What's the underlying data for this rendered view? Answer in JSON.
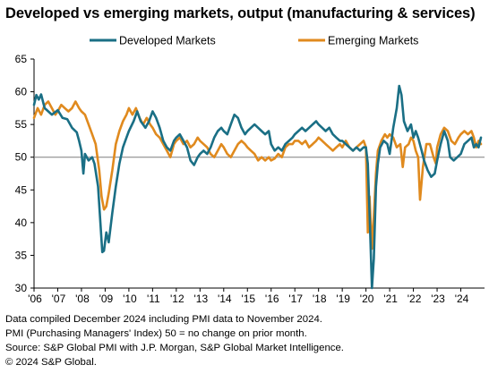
{
  "title": "Developed vs emerging markets, output (manufacturing & services)",
  "notes": [
    "Data compiled December 2024 including PMI data to November 2024.",
    "PMI (Purchasing Managers' Index) 50 = no change on prior month.",
    "Source: S&P Global PMI with J.P. Morgan, S&P Global Market Intelligence.",
    "© 2024 S&P Global."
  ],
  "colors": {
    "developed": "#1a6f85",
    "emerging": "#e08a1e",
    "reference_line": "#7f7f7f"
  },
  "chart_data": {
    "type": "line",
    "title": "Developed vs emerging markets, output (manufacturing & services)",
    "xlabel": "",
    "ylabel": "",
    "ylim": [
      30,
      65
    ],
    "xlim": [
      2006.0,
      2025.0
    ],
    "y_ticks": [
      30,
      35,
      40,
      45,
      50,
      55,
      60,
      65
    ],
    "x_ticks": [
      {
        "label": "'06",
        "x": 2006.0
      },
      {
        "label": "'07",
        "x": 2007.0
      },
      {
        "label": "'08",
        "x": 2008.0
      },
      {
        "label": "'09",
        "x": 2009.0
      },
      {
        "label": "'10",
        "x": 2010.0
      },
      {
        "label": "'11",
        "x": 2011.0
      },
      {
        "label": "'12",
        "x": 2012.0
      },
      {
        "label": "'13",
        "x": 2013.0
      },
      {
        "label": "'14",
        "x": 2014.0
      },
      {
        "label": "'15",
        "x": 2015.0
      },
      {
        "label": "'16",
        "x": 2016.0
      },
      {
        "label": "'17",
        "x": 2017.0
      },
      {
        "label": "'18",
        "x": 2018.0
      },
      {
        "label": "'19",
        "x": 2019.0
      },
      {
        "label": "'20",
        "x": 2020.0
      },
      {
        "label": "'21",
        "x": 2021.0
      },
      {
        "label": "'22",
        "x": 2022.0
      },
      {
        "label": "'23",
        "x": 2023.0
      },
      {
        "label": "'24",
        "x": 2024.0
      }
    ],
    "reference_line": 50,
    "grid": false,
    "legend": "top",
    "series": [
      {
        "name": "Developed Markets",
        "color": "#1a6f85",
        "points": [
          [
            2006.0,
            58.0
          ],
          [
            2006.1,
            59.5
          ],
          [
            2006.2,
            58.8
          ],
          [
            2006.3,
            59.6
          ],
          [
            2006.45,
            57.5
          ],
          [
            2006.6,
            57.0
          ],
          [
            2006.75,
            56.5
          ],
          [
            2007.0,
            57.2
          ],
          [
            2007.2,
            56.0
          ],
          [
            2007.4,
            55.8
          ],
          [
            2007.6,
            54.5
          ],
          [
            2007.8,
            53.8
          ],
          [
            2007.9,
            52.5
          ],
          [
            2008.0,
            51.0
          ],
          [
            2008.08,
            47.5
          ],
          [
            2008.15,
            50.5
          ],
          [
            2008.3,
            49.5
          ],
          [
            2008.45,
            50.0
          ],
          [
            2008.55,
            49.0
          ],
          [
            2008.7,
            45.5
          ],
          [
            2008.8,
            40.0
          ],
          [
            2008.88,
            35.5
          ],
          [
            2008.95,
            35.7
          ],
          [
            2009.05,
            38.5
          ],
          [
            2009.15,
            37.0
          ],
          [
            2009.3,
            41.5
          ],
          [
            2009.45,
            45.5
          ],
          [
            2009.6,
            49.0
          ],
          [
            2009.75,
            51.5
          ],
          [
            2009.9,
            53.0
          ],
          [
            2010.0,
            54.0
          ],
          [
            2010.2,
            55.5
          ],
          [
            2010.35,
            57.0
          ],
          [
            2010.5,
            55.5
          ],
          [
            2010.7,
            54.5
          ],
          [
            2010.85,
            55.5
          ],
          [
            2011.0,
            57.0
          ],
          [
            2011.15,
            56.0
          ],
          [
            2011.3,
            54.5
          ],
          [
            2011.45,
            52.5
          ],
          [
            2011.6,
            51.5
          ],
          [
            2011.75,
            51.0
          ],
          [
            2011.9,
            52.5
          ],
          [
            2012.0,
            53.0
          ],
          [
            2012.15,
            53.5
          ],
          [
            2012.3,
            52.5
          ],
          [
            2012.45,
            51.5
          ],
          [
            2012.6,
            49.5
          ],
          [
            2012.75,
            48.8
          ],
          [
            2012.9,
            50.0
          ],
          [
            2013.0,
            50.5
          ],
          [
            2013.15,
            51.0
          ],
          [
            2013.3,
            50.5
          ],
          [
            2013.45,
            51.5
          ],
          [
            2013.6,
            53.0
          ],
          [
            2013.75,
            54.0
          ],
          [
            2013.9,
            54.5
          ],
          [
            2014.0,
            54.0
          ],
          [
            2014.15,
            53.5
          ],
          [
            2014.3,
            55.0
          ],
          [
            2014.45,
            56.5
          ],
          [
            2014.6,
            56.0
          ],
          [
            2014.75,
            54.5
          ],
          [
            2014.9,
            53.5
          ],
          [
            2015.0,
            54.0
          ],
          [
            2015.15,
            54.5
          ],
          [
            2015.3,
            55.0
          ],
          [
            2015.45,
            54.5
          ],
          [
            2015.6,
            54.0
          ],
          [
            2015.75,
            53.5
          ],
          [
            2015.9,
            54.0
          ],
          [
            2016.0,
            52.0
          ],
          [
            2016.15,
            51.0
          ],
          [
            2016.3,
            51.5
          ],
          [
            2016.45,
            51.0
          ],
          [
            2016.6,
            52.0
          ],
          [
            2016.75,
            52.5
          ],
          [
            2016.9,
            53.0
          ],
          [
            2017.0,
            53.5
          ],
          [
            2017.15,
            54.0
          ],
          [
            2017.3,
            54.5
          ],
          [
            2017.45,
            54.0
          ],
          [
            2017.6,
            54.5
          ],
          [
            2017.75,
            55.0
          ],
          [
            2017.9,
            55.5
          ],
          [
            2018.0,
            55.0
          ],
          [
            2018.15,
            54.5
          ],
          [
            2018.3,
            54.0
          ],
          [
            2018.45,
            54.5
          ],
          [
            2018.6,
            53.5
          ],
          [
            2018.75,
            53.0
          ],
          [
            2018.9,
            52.5
          ],
          [
            2019.0,
            52.5
          ],
          [
            2019.15,
            52.0
          ],
          [
            2019.3,
            51.5
          ],
          [
            2019.45,
            51.0
          ],
          [
            2019.6,
            51.5
          ],
          [
            2019.75,
            51.0
          ],
          [
            2019.9,
            51.5
          ],
          [
            2020.0,
            51.5
          ],
          [
            2020.08,
            49.0
          ],
          [
            2020.17,
            39.5
          ],
          [
            2020.25,
            30.0
          ],
          [
            2020.33,
            34.5
          ],
          [
            2020.42,
            45.5
          ],
          [
            2020.5,
            49.0
          ],
          [
            2020.6,
            51.5
          ],
          [
            2020.75,
            52.5
          ],
          [
            2020.9,
            52.0
          ],
          [
            2021.0,
            50.5
          ],
          [
            2021.15,
            54.5
          ],
          [
            2021.3,
            57.5
          ],
          [
            2021.4,
            60.9
          ],
          [
            2021.5,
            59.5
          ],
          [
            2021.6,
            55.5
          ],
          [
            2021.75,
            54.0
          ],
          [
            2021.9,
            55.0
          ],
          [
            2022.0,
            53.0
          ],
          [
            2022.1,
            54.0
          ],
          [
            2022.2,
            53.0
          ],
          [
            2022.35,
            51.0
          ],
          [
            2022.45,
            49.5
          ],
          [
            2022.6,
            48.0
          ],
          [
            2022.75,
            47.0
          ],
          [
            2022.9,
            47.5
          ],
          [
            2023.0,
            49.5
          ],
          [
            2023.15,
            52.0
          ],
          [
            2023.3,
            54.0
          ],
          [
            2023.45,
            52.5
          ],
          [
            2023.55,
            50.0
          ],
          [
            2023.7,
            49.5
          ],
          [
            2023.85,
            50.0
          ],
          [
            2024.0,
            50.5
          ],
          [
            2024.15,
            52.0
          ],
          [
            2024.3,
            52.5
          ],
          [
            2024.45,
            53.0
          ],
          [
            2024.55,
            51.5
          ],
          [
            2024.65,
            52.0
          ],
          [
            2024.75,
            51.5
          ],
          [
            2024.85,
            53.0
          ]
        ]
      },
      {
        "name": "Emerging Markets",
        "color": "#e08a1e",
        "points": [
          [
            2006.0,
            56.0
          ],
          [
            2006.15,
            57.5
          ],
          [
            2006.3,
            56.5
          ],
          [
            2006.45,
            58.0
          ],
          [
            2006.6,
            58.5
          ],
          [
            2006.75,
            57.5
          ],
          [
            2006.9,
            56.5
          ],
          [
            2007.0,
            57.0
          ],
          [
            2007.15,
            58.0
          ],
          [
            2007.3,
            57.5
          ],
          [
            2007.45,
            57.0
          ],
          [
            2007.6,
            57.5
          ],
          [
            2007.75,
            58.5
          ],
          [
            2007.9,
            57.5
          ],
          [
            2008.0,
            57.0
          ],
          [
            2008.15,
            56.5
          ],
          [
            2008.3,
            55.0
          ],
          [
            2008.45,
            53.5
          ],
          [
            2008.6,
            52.0
          ],
          [
            2008.75,
            48.0
          ],
          [
            2008.85,
            44.0
          ],
          [
            2008.95,
            42.0
          ],
          [
            2009.05,
            42.5
          ],
          [
            2009.15,
            44.5
          ],
          [
            2009.3,
            48.0
          ],
          [
            2009.45,
            52.0
          ],
          [
            2009.6,
            54.0
          ],
          [
            2009.75,
            55.5
          ],
          [
            2009.9,
            56.5
          ],
          [
            2010.0,
            57.5
          ],
          [
            2010.15,
            56.5
          ],
          [
            2010.3,
            57.5
          ],
          [
            2010.45,
            56.0
          ],
          [
            2010.6,
            55.0
          ],
          [
            2010.75,
            56.0
          ],
          [
            2010.9,
            55.0
          ],
          [
            2011.0,
            54.5
          ],
          [
            2011.15,
            53.5
          ],
          [
            2011.3,
            53.0
          ],
          [
            2011.45,
            52.0
          ],
          [
            2011.6,
            51.0
          ],
          [
            2011.75,
            50.0
          ],
          [
            2011.9,
            52.0
          ],
          [
            2012.0,
            52.5
          ],
          [
            2012.15,
            53.0
          ],
          [
            2012.3,
            52.0
          ],
          [
            2012.45,
            52.5
          ],
          [
            2012.6,
            51.5
          ],
          [
            2012.75,
            52.0
          ],
          [
            2012.9,
            53.0
          ],
          [
            2013.0,
            52.5
          ],
          [
            2013.15,
            52.0
          ],
          [
            2013.3,
            51.5
          ],
          [
            2013.45,
            50.5
          ],
          [
            2013.6,
            50.0
          ],
          [
            2013.75,
            51.0
          ],
          [
            2013.9,
            52.0
          ],
          [
            2014.0,
            51.5
          ],
          [
            2014.15,
            50.5
          ],
          [
            2014.3,
            50.0
          ],
          [
            2014.45,
            51.0
          ],
          [
            2014.6,
            52.0
          ],
          [
            2014.75,
            52.5
          ],
          [
            2014.9,
            52.0
          ],
          [
            2015.0,
            51.5
          ],
          [
            2015.15,
            51.0
          ],
          [
            2015.3,
            50.5
          ],
          [
            2015.45,
            49.5
          ],
          [
            2015.6,
            50.0
          ],
          [
            2015.75,
            49.5
          ],
          [
            2015.9,
            50.0
          ],
          [
            2016.0,
            49.5
          ],
          [
            2016.15,
            49.8
          ],
          [
            2016.3,
            50.5
          ],
          [
            2016.45,
            50.0
          ],
          [
            2016.6,
            51.5
          ],
          [
            2016.75,
            52.0
          ],
          [
            2016.9,
            52.0
          ],
          [
            2017.0,
            52.5
          ],
          [
            2017.15,
            52.5
          ],
          [
            2017.3,
            52.0
          ],
          [
            2017.45,
            52.5
          ],
          [
            2017.6,
            51.5
          ],
          [
            2017.75,
            52.0
          ],
          [
            2017.9,
            52.5
          ],
          [
            2018.0,
            53.0
          ],
          [
            2018.15,
            52.5
          ],
          [
            2018.3,
            52.0
          ],
          [
            2018.45,
            51.5
          ],
          [
            2018.6,
            51.0
          ],
          [
            2018.75,
            51.5
          ],
          [
            2018.9,
            52.0
          ],
          [
            2019.0,
            51.5
          ],
          [
            2019.15,
            52.5
          ],
          [
            2019.3,
            51.5
          ],
          [
            2019.45,
            51.0
          ],
          [
            2019.6,
            51.5
          ],
          [
            2019.75,
            52.0
          ],
          [
            2019.9,
            52.5
          ],
          [
            2020.0,
            51.5
          ],
          [
            2020.08,
            38.5
          ],
          [
            2020.15,
            44.0
          ],
          [
            2020.25,
            36.0
          ],
          [
            2020.33,
            41.0
          ],
          [
            2020.42,
            47.5
          ],
          [
            2020.5,
            51.0
          ],
          [
            2020.65,
            52.5
          ],
          [
            2020.8,
            53.5
          ],
          [
            2020.9,
            53.0
          ],
          [
            2021.0,
            53.5
          ],
          [
            2021.15,
            53.0
          ],
          [
            2021.3,
            51.5
          ],
          [
            2021.45,
            52.0
          ],
          [
            2021.55,
            48.5
          ],
          [
            2021.65,
            51.5
          ],
          [
            2021.8,
            52.0
          ],
          [
            2021.9,
            53.0
          ],
          [
            2022.0,
            52.5
          ],
          [
            2022.1,
            51.0
          ],
          [
            2022.2,
            50.0
          ],
          [
            2022.28,
            43.5
          ],
          [
            2022.4,
            48.5
          ],
          [
            2022.55,
            52.0
          ],
          [
            2022.7,
            52.0
          ],
          [
            2022.85,
            50.0
          ],
          [
            2022.95,
            49.0
          ],
          [
            2023.0,
            51.5
          ],
          [
            2023.15,
            53.5
          ],
          [
            2023.3,
            54.5
          ],
          [
            2023.45,
            54.0
          ],
          [
            2023.6,
            52.5
          ],
          [
            2023.75,
            52.0
          ],
          [
            2023.9,
            53.0
          ],
          [
            2024.0,
            53.5
          ],
          [
            2024.15,
            54.0
          ],
          [
            2024.3,
            53.5
          ],
          [
            2024.45,
            54.0
          ],
          [
            2024.55,
            53.0
          ],
          [
            2024.65,
            51.5
          ],
          [
            2024.75,
            52.5
          ],
          [
            2024.85,
            52.0
          ]
        ]
      }
    ]
  }
}
